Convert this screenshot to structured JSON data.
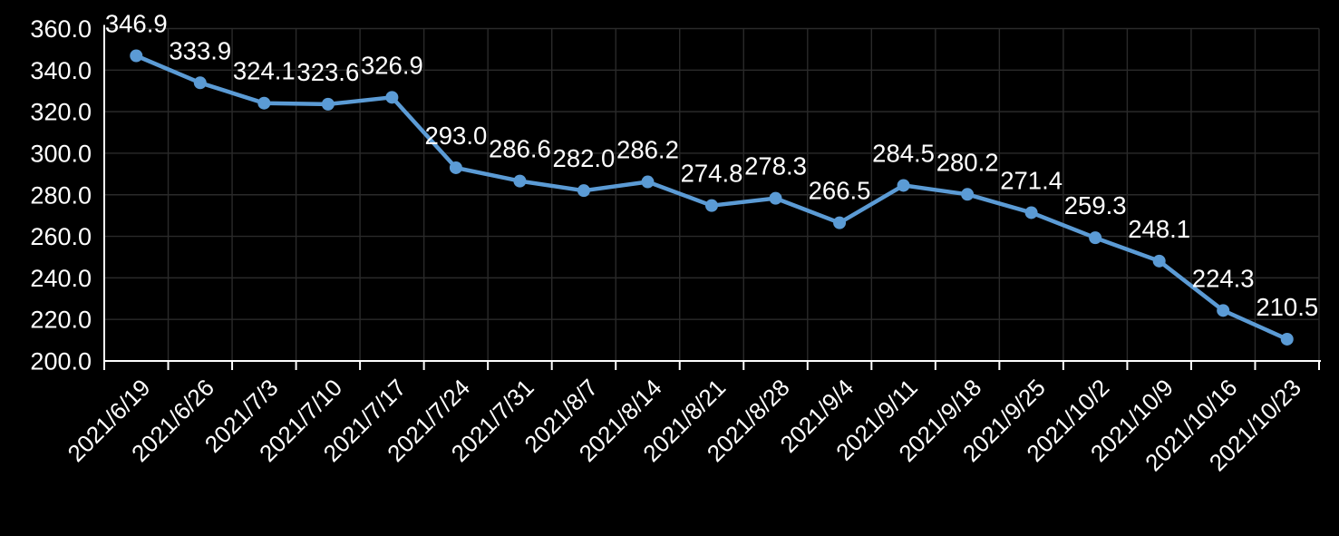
{
  "chart_data": {
    "type": "line",
    "title": "",
    "categories": [
      "2021/6/19",
      "2021/6/26",
      "2021/7/3",
      "2021/7/10",
      "2021/7/17",
      "2021/7/24",
      "2021/7/31",
      "2021/8/7",
      "2021/8/14",
      "2021/8/21",
      "2021/8/28",
      "2021/9/4",
      "2021/9/11",
      "2021/9/18",
      "2021/9/25",
      "2021/10/2",
      "2021/10/9",
      "2021/10/16",
      "2021/10/23"
    ],
    "values": [
      346.9,
      333.9,
      324.1,
      323.6,
      326.9,
      293.0,
      286.6,
      282.0,
      286.2,
      274.8,
      278.3,
      266.5,
      284.5,
      280.2,
      271.4,
      259.3,
      248.1,
      224.3,
      210.5
    ],
    "data_labels": [
      "346.9",
      "333.9",
      "324.1",
      "323.6",
      "326.9",
      "293.0",
      "286.6",
      "282.0",
      "286.2",
      "274.8",
      "278.3",
      "266.5",
      "284.5",
      "280.2",
      "271.4",
      "259.3",
      "248.1",
      "224.3",
      "210.5"
    ],
    "ytick_labels": [
      "200.0",
      "220.0",
      "240.0",
      "260.0",
      "280.0",
      "300.0",
      "320.0",
      "340.0",
      "360.0"
    ],
    "ylim": [
      200,
      360
    ],
    "ytick_step": 20,
    "xlabel": "",
    "ylabel": "",
    "grid": true,
    "legend": "none",
    "colors": {
      "background": "#000000",
      "line": "#5B9BD5",
      "marker": "#5B9BD5",
      "grid": "#2A2A2A",
      "axis": "#FFFFFF",
      "text": "#FFFFFF"
    }
  }
}
